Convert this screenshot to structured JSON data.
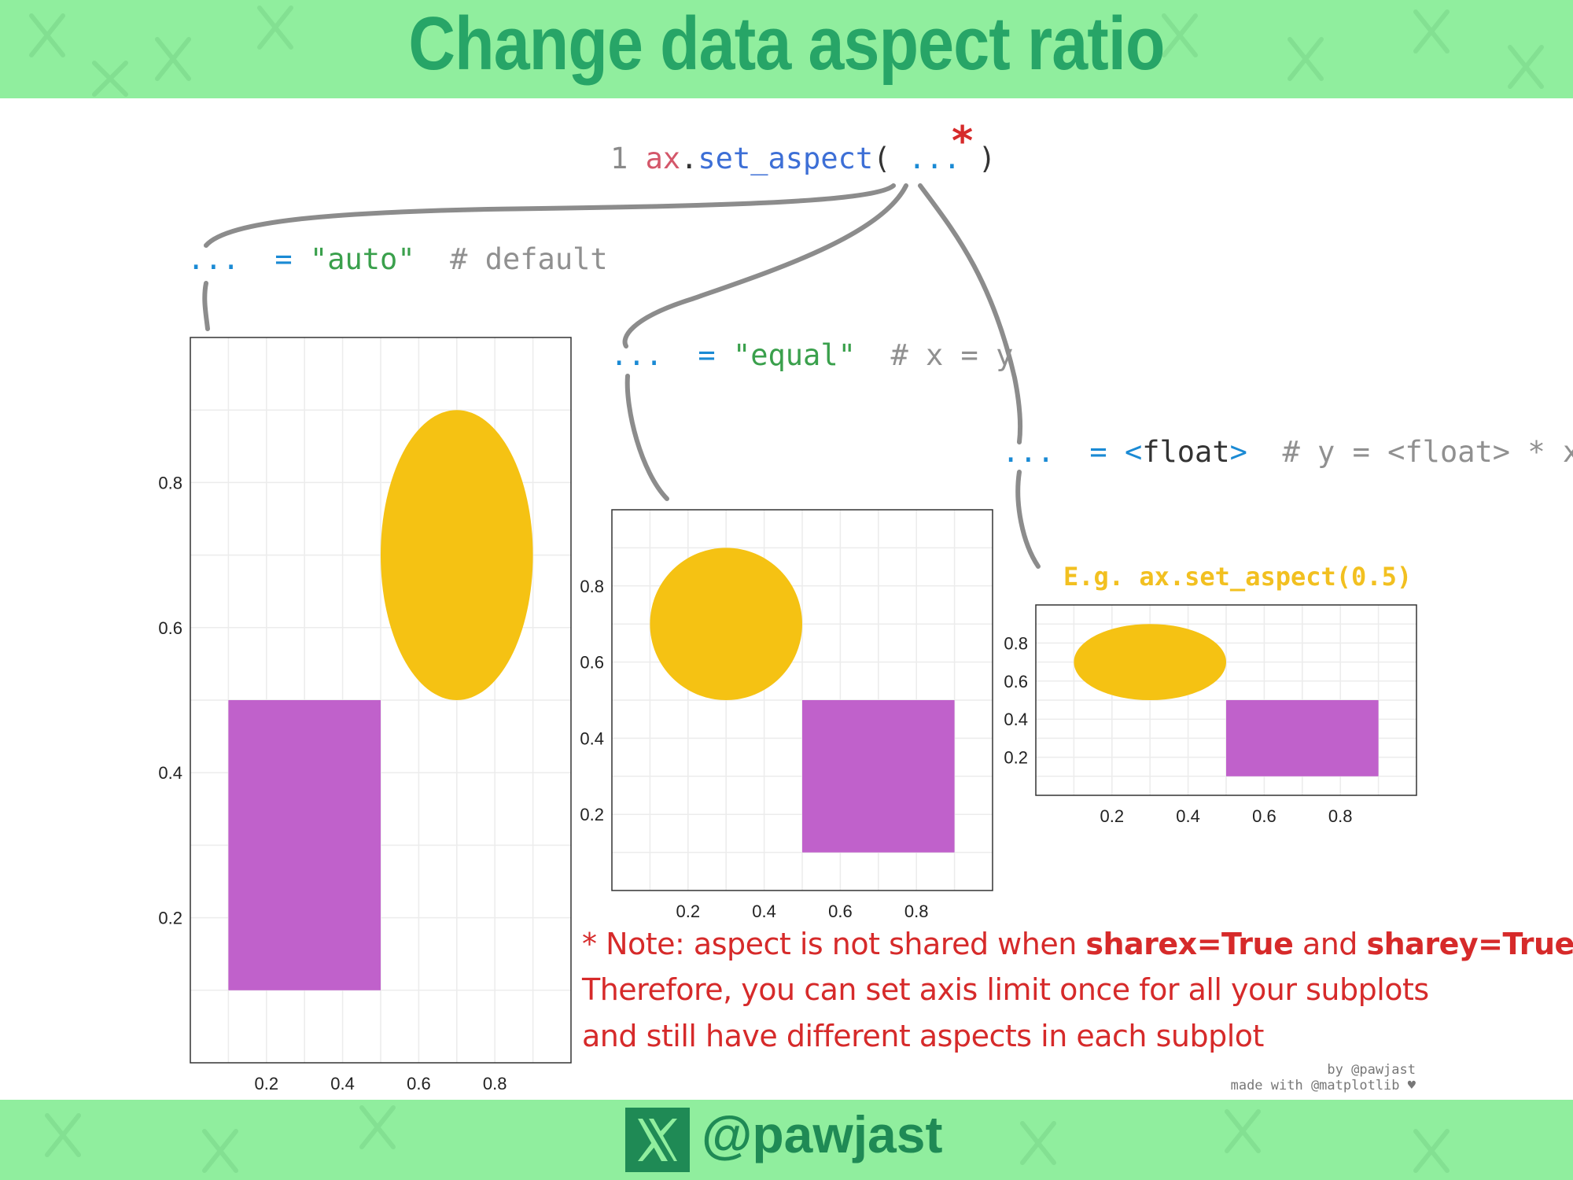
{
  "header": {
    "title": "Change data aspect ratio"
  },
  "code_line": {
    "line_number": "1",
    "object": "ax",
    "dot": ".",
    "method": "set_aspect",
    "open_paren": "(",
    "ellipsis": "...",
    "close_paren": ")",
    "asterisk": "*"
  },
  "options": [
    {
      "ellipsis": "...",
      "equals": "=",
      "value": "\"auto\"",
      "comment": "# default"
    },
    {
      "ellipsis": "...",
      "equals": "=",
      "value": "\"equal\"",
      "comment": "# x = y"
    },
    {
      "ellipsis": "...",
      "equals": "=",
      "value_open": "<",
      "value_type": "float",
      "value_close": ">",
      "comment": "# y = <float> * x"
    }
  ],
  "example_label": "E.g. ax.set_aspect(0.5)",
  "note": {
    "line1_prefix": "* Note: aspect is not shared when ",
    "sharex": "sharex=True",
    "and": " and ",
    "sharey": "sharey=True",
    "line2": "Therefore, you can set axis limit once for all your subplots",
    "line3": "and still have different aspects in each subplot"
  },
  "credit": {
    "line1": "by @pawjast",
    "line2": "made with @matplotlib ♥"
  },
  "footer": {
    "handle": "@pawjast",
    "logo_icon": "x-logo-icon"
  },
  "colors": {
    "band": "#90ee9e",
    "title": "#27a567",
    "ellipse": "#f5c213",
    "rectangle": "#c061cb",
    "note": "#d62a2a",
    "connector": "#8c8c8c"
  },
  "chart_data": [
    {
      "type": "scatter",
      "aspect": "auto",
      "xlim": [
        0,
        1
      ],
      "ylim": [
        0,
        1
      ],
      "xticks": [
        0.2,
        0.4,
        0.6,
        0.8
      ],
      "yticks": [
        0.2,
        0.4,
        0.6,
        0.8
      ],
      "xtick_labels": [
        "0.2",
        "0.4",
        "0.6",
        "0.8"
      ],
      "ytick_labels": [
        "0.2",
        "0.4",
        "0.6",
        "0.8"
      ],
      "grid": true,
      "shapes": [
        {
          "shape": "rectangle",
          "x": 0.1,
          "y": 0.1,
          "width": 0.4,
          "height": 0.4,
          "color": "#c061cb"
        },
        {
          "shape": "ellipse",
          "cx": 0.7,
          "cy": 0.7,
          "rx": 0.2,
          "ry": 0.2,
          "color": "#f5c213"
        }
      ]
    },
    {
      "type": "scatter",
      "aspect": "equal",
      "xlim": [
        0,
        1
      ],
      "ylim": [
        0,
        1
      ],
      "xticks": [
        0.2,
        0.4,
        0.6,
        0.8
      ],
      "yticks": [
        0.2,
        0.4,
        0.6,
        0.8
      ],
      "xtick_labels": [
        "0.2",
        "0.4",
        "0.6",
        "0.8"
      ],
      "ytick_labels": [
        "0.2",
        "0.4",
        "0.6",
        "0.8"
      ],
      "grid": true,
      "shapes": [
        {
          "shape": "rectangle",
          "x": 0.5,
          "y": 0.1,
          "width": 0.4,
          "height": 0.4,
          "color": "#c061cb"
        },
        {
          "shape": "ellipse",
          "cx": 0.3,
          "cy": 0.7,
          "rx": 0.2,
          "ry": 0.2,
          "color": "#f5c213"
        }
      ]
    },
    {
      "type": "scatter",
      "aspect": 0.5,
      "xlim": [
        0,
        1
      ],
      "ylim": [
        0,
        1
      ],
      "xticks": [
        0.2,
        0.4,
        0.6,
        0.8
      ],
      "yticks": [
        0.2,
        0.4,
        0.6,
        0.8
      ],
      "xtick_labels": [
        "0.2",
        "0.4",
        "0.6",
        "0.8"
      ],
      "ytick_labels": [
        "0.2",
        "0.4",
        "0.6",
        "0.8"
      ],
      "grid": true,
      "shapes": [
        {
          "shape": "rectangle",
          "x": 0.5,
          "y": 0.1,
          "width": 0.4,
          "height": 0.4,
          "color": "#c061cb"
        },
        {
          "shape": "ellipse",
          "cx": 0.3,
          "cy": 0.7,
          "rx": 0.2,
          "ry": 0.2,
          "color": "#f5c213"
        }
      ]
    }
  ]
}
